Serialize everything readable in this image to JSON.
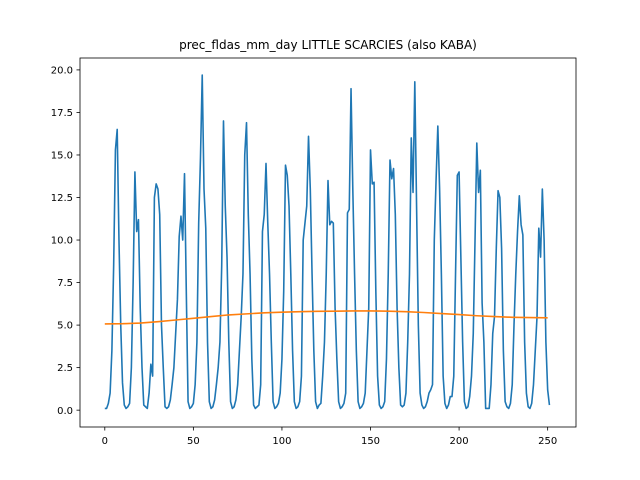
{
  "chart_data": {
    "type": "line",
    "title": "prec_fldas_mm_day LITTLE SCARCIES (also KABA)",
    "xlabel": "",
    "ylabel": "",
    "xlim": [
      -14,
      266
    ],
    "ylim": [
      -0.99,
      20.7
    ],
    "grid": false,
    "x_ticks": [
      0,
      50,
      100,
      150,
      200,
      250
    ],
    "y_ticks": [
      0.0,
      2.5,
      5.0,
      7.5,
      10.0,
      12.5,
      15.0,
      17.5,
      20.0
    ],
    "x_tick_labels": [
      "0",
      "50",
      "100",
      "150",
      "200",
      "250"
    ],
    "y_tick_labels": [
      "0.0",
      "2.5",
      "5.0",
      "7.5",
      "10.0",
      "12.5",
      "15.0",
      "17.5",
      "20.0"
    ],
    "series": [
      {
        "color": "#1f77b4",
        "x_start": 0,
        "values": [
          0.1,
          0.1,
          0.4,
          1.0,
          3.5,
          8.5,
          15.3,
          16.5,
          10.0,
          5.0,
          1.6,
          0.3,
          0.1,
          0.2,
          0.4,
          2.5,
          7.5,
          14.0,
          10.5,
          11.2,
          6.0,
          2.5,
          0.3,
          0.2,
          0.1,
          1.0,
          2.7,
          2.0,
          12.5,
          13.3,
          13.0,
          11.5,
          5.0,
          2.5,
          0.2,
          0.1,
          0.2,
          0.6,
          1.5,
          2.5,
          4.5,
          6.5,
          10.2,
          11.4,
          10.0,
          13.9,
          7.0,
          0.5,
          0.1,
          0.2,
          0.4,
          1.5,
          4.0,
          11.0,
          14.8,
          19.7,
          13.0,
          10.7,
          4.0,
          0.5,
          0.1,
          0.2,
          0.6,
          1.5,
          2.5,
          4.0,
          8.5,
          17.0,
          12.0,
          9.0,
          4.0,
          0.5,
          0.1,
          0.2,
          0.6,
          1.5,
          3.5,
          5.5,
          8.0,
          15.0,
          16.9,
          11.5,
          8.0,
          3.0,
          0.3,
          0.1,
          0.2,
          0.3,
          1.5,
          10.5,
          11.5,
          14.5,
          11.0,
          8.0,
          4.0,
          0.5,
          0.1,
          0.2,
          0.4,
          1.0,
          3.0,
          7.0,
          14.4,
          13.8,
          12.0,
          8.0,
          3.5,
          0.5,
          0.1,
          0.2,
          0.5,
          2.0,
          10.0,
          11.0,
          12.0,
          16.1,
          13.0,
          8.0,
          3.5,
          0.5,
          0.1,
          0.3,
          0.4,
          2.0,
          4.0,
          8.0,
          13.5,
          10.9,
          11.1,
          11.0,
          6.0,
          3.0,
          0.5,
          0.1,
          0.2,
          0.4,
          1.0,
          11.6,
          11.8,
          18.9,
          13.0,
          8.0,
          3.5,
          0.5,
          0.1,
          0.2,
          0.4,
          1.0,
          3.5,
          6.0,
          15.3,
          13.3,
          13.4,
          7.0,
          2.0,
          0.3,
          0.1,
          0.2,
          0.5,
          3.0,
          8.0,
          14.7,
          13.6,
          14.2,
          11.5,
          6.0,
          2.5,
          0.3,
          0.2,
          0.3,
          1.0,
          4.0,
          8.0,
          16.0,
          12.8,
          19.3,
          12.0,
          5.0,
          1.0,
          0.3,
          0.1,
          0.2,
          0.5,
          1.0,
          1.2,
          1.5,
          10.0,
          13.5,
          16.7,
          13.0,
          8.0,
          2.0,
          0.4,
          0.1,
          0.3,
          0.8,
          0.8,
          2.0,
          8.0,
          13.8,
          14.0,
          9.0,
          4.0,
          0.5,
          0.1,
          0.2,
          0.8,
          2.0,
          4.5,
          10.0,
          15.7,
          12.8,
          14.1,
          6.3,
          4.0,
          0.1,
          0.1,
          0.1,
          1.5,
          4.5,
          5.5,
          9.5,
          12.9,
          12.5,
          9.5,
          3.5,
          0.5,
          0.2,
          0.1,
          0.4,
          1.5,
          5.0,
          8.0,
          10.5,
          12.6,
          10.9,
          10.3,
          4.0,
          1.0,
          0.2,
          0.1,
          0.4,
          1.5,
          3.5,
          5.5,
          10.7,
          9.0,
          13.0,
          10.0,
          4.0,
          1.2,
          0.3
        ]
      },
      {
        "color": "#ff7f0e",
        "points": [
          [
            0,
            5.07
          ],
          [
            10,
            5.08
          ],
          [
            20,
            5.12
          ],
          [
            30,
            5.2
          ],
          [
            40,
            5.3
          ],
          [
            50,
            5.4
          ],
          [
            60,
            5.5
          ],
          [
            70,
            5.6
          ],
          [
            80,
            5.66
          ],
          [
            90,
            5.72
          ],
          [
            100,
            5.76
          ],
          [
            110,
            5.79
          ],
          [
            120,
            5.81
          ],
          [
            130,
            5.82
          ],
          [
            140,
            5.83
          ],
          [
            150,
            5.83
          ],
          [
            160,
            5.82
          ],
          [
            170,
            5.79
          ],
          [
            180,
            5.74
          ],
          [
            190,
            5.68
          ],
          [
            200,
            5.62
          ],
          [
            210,
            5.55
          ],
          [
            220,
            5.5
          ],
          [
            230,
            5.46
          ],
          [
            240,
            5.44
          ],
          [
            250,
            5.43
          ]
        ]
      }
    ]
  }
}
